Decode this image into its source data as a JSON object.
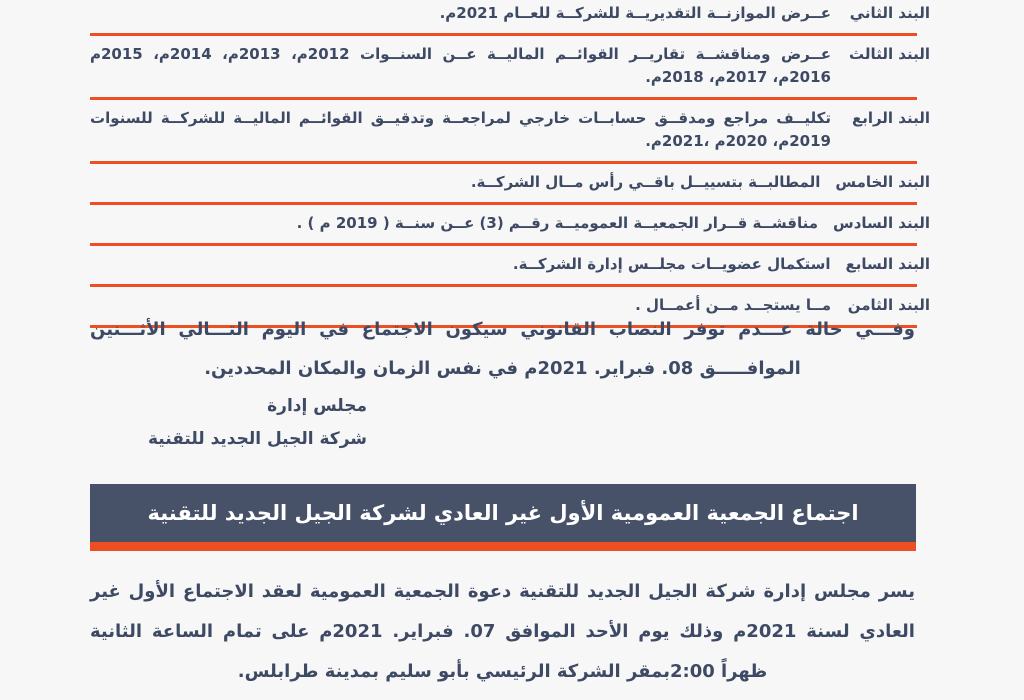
{
  "page": {
    "language": "ar",
    "accent_orange": "#ed4f23",
    "banner_background": "#475269",
    "text_color": "#3e4a64",
    "page_background": "#f7f7f8"
  },
  "agenda": {
    "items": [
      {
        "label": "البند الثاني",
        "text": "عــرض الموازنــة التقديريــة للشركــة للعــام 2021م."
      },
      {
        "label": "البند الثالث",
        "text": "عــرض ومناقشــة تقاريــر القوائــم الماليــة عــن السنــوات 2012م، 2013م، 2014م، 2015م 2016م، 2017م، 2018م."
      },
      {
        "label": "البند الرابع",
        "text": "تكليــف مراجع ومدقــق حسابــات خارجي لمراجعــة وتدقيــق القوائــم الماليــة للشركــة للسنوات 2019م، 2020م ،2021م."
      },
      {
        "label": "البند الخامس",
        "text": "المطالبــة بتسييــل باقــي رأس مــال الشركــة."
      },
      {
        "label": "البند السادس",
        "text": "مناقشــة قــرار الجمعيــة العموميــة رقــم (3) عــن سنــة ( 2019 م ) ."
      },
      {
        "label": "البند السابع",
        "text": "استكمال عضويــات مجلــس إدارة الشركــة."
      },
      {
        "label": "البند الثامن",
        "text": "مــا يستجــد مــن أعمــال ."
      }
    ]
  },
  "quorum_note": "وفـــي حالة عـــدم توفر النصاب القانوني سيكون الاجتماع في اليوم التـــالي الأثـــنين الموافـــــق 08. فبراير. 2021م في نفس الزمان والمكان المحددين.",
  "signature": {
    "line1": "مجلس إدارة",
    "line2": "شركة الجيل الجديد للتقنية"
  },
  "banner": {
    "title": "اجتماع الجمعية العمومية الأول غير العادي لشركة الجيل الجديد للتقنية"
  },
  "invitation": "يسر مجلس إدارة شركة الجيل الجديد للتقنية دعوة الجمعية العمومية لعقد الاجتماع الأول غير العادي لسنة 2021م وذلك يوم الأحد الموافق 07. فبراير. 2021م على تمام الساعة الثانية ظهراً 2:00بمقر الشركة الرئيسي بأبو سليم بمدينة طرابلس."
}
